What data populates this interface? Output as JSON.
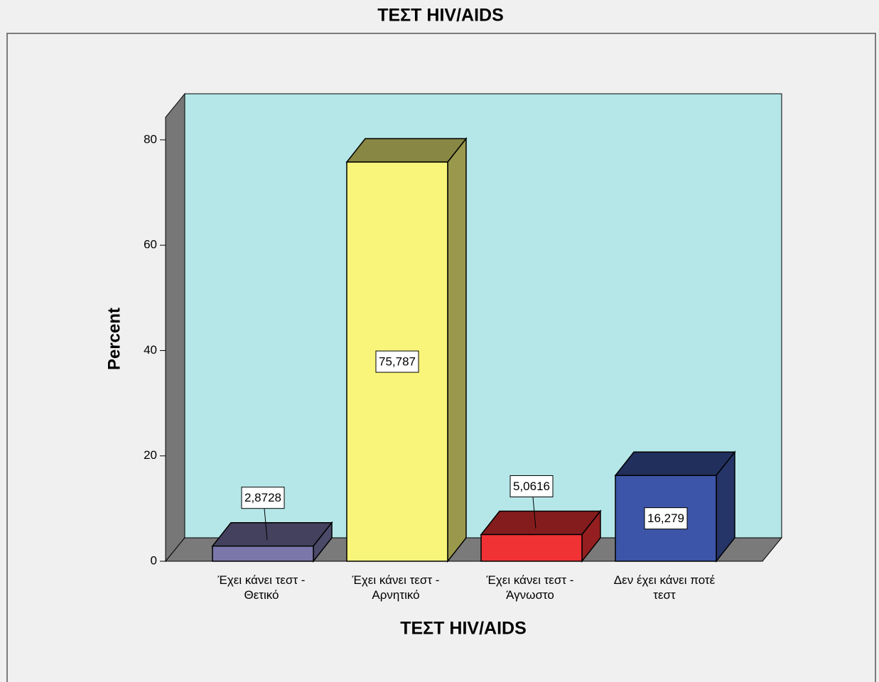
{
  "chart_data": {
    "type": "bar3d",
    "title": "ΤΕΣΤ HIV/AIDS",
    "x_label": "ΤΕΣΤ HIV/AIDS",
    "y_label": "Percent",
    "categories": [
      "Έχει κάνει τεστ -\nΘετικό",
      "Έχει κάνει τεστ -\nΑρνητικό",
      "Έχει κάνει τεστ -\nΆγνωστο",
      "Δεν έχει κάνει ποτέ\nτεστ"
    ],
    "values": [
      2.8728,
      75.787,
      5.0616,
      16.279
    ],
    "value_labels": [
      "2,8728",
      "75,787",
      "5,0616",
      "16,279"
    ],
    "colors": [
      "#7b77aa",
      "#f8f57a",
      "#f03234",
      "#3c55a8"
    ],
    "ylim": [
      0,
      84.3
    ],
    "yticks": [
      0,
      20,
      40,
      60,
      80
    ]
  }
}
